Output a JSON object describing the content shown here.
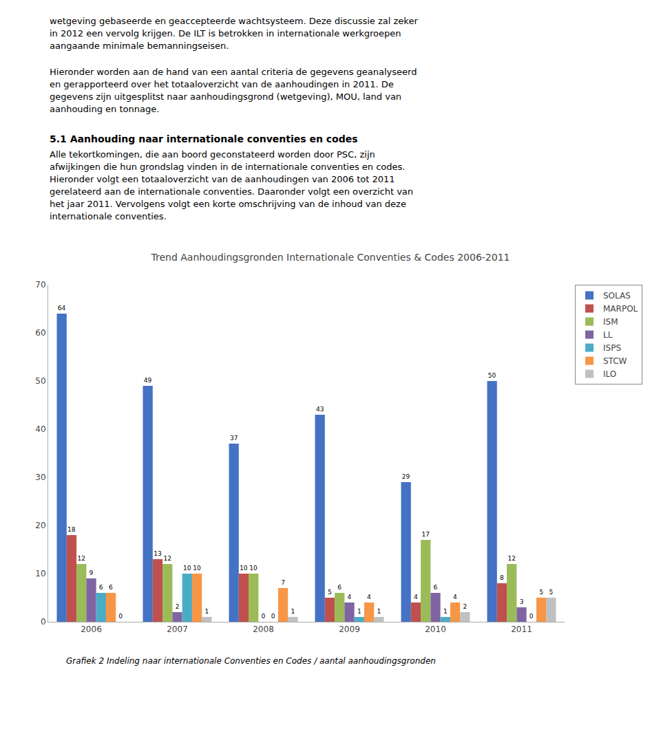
{
  "paragraphs": [
    {
      "lines": [
        "wetgeving gebaseerde en geaccepteerde wachtsysteem. Deze discussie zal zeker",
        "in 2012 een vervolg krijgen. De ILT is betrokken in internationale werkgroepen",
        "aangaande minimale bemanningseisen."
      ]
    },
    {
      "lines": [
        "Hieronder worden aan de hand van een aantal criteria de gegevens geanalyseerd",
        "en gerapporteerd over het totaaloverzicht van de aanhoudingen in 2011. De",
        "gegevens zijn uitgesplitst naar aanhoudingsgrond (wetgeving), MOU, land van",
        "aanhouding en tonnage."
      ]
    },
    {
      "heading": "5.1 Aanhouding naar internationale conventies en codes"
    },
    {
      "lines": [
        "Alle tekortkomingen, die aan boord geconstateerd worden door PSC, zijn",
        "afwijkingen die hun grondslag vinden in de internationale conventies en codes.",
        "Hieronder volgt een totaaloverzicht van de aanhoudingen van 2006 tot 2011",
        "gerelateerd aan de internationale conventies. Daaronder volgt een overzicht van",
        "het jaar 2011. Vervolgens volgt een korte omschrijving van de inhoud van deze",
        "internationale conventies."
      ]
    }
  ],
  "chart_data": {
    "type": "bar",
    "title": "Trend Aanhoudingsgronden Internationale Conventies & Codes 2006-2011",
    "caption": "Grafiek 2 Indeling naar internationale Conventies en Codes / aantal aanhoudingsgronden",
    "categories": [
      "2006",
      "2007",
      "2008",
      "2009",
      "2010",
      "2011"
    ],
    "series": [
      {
        "name": "SOLAS",
        "color": "#4472C4",
        "values": [
          64,
          49,
          37,
          43,
          29,
          50
        ]
      },
      {
        "name": "MARPOL",
        "color": "#C0504D",
        "values": [
          18,
          13,
          10,
          5,
          4,
          8
        ]
      },
      {
        "name": "ISM",
        "color": "#9BBB59",
        "values": [
          12,
          12,
          10,
          6,
          17,
          12
        ]
      },
      {
        "name": "LL",
        "color": "#8064A2",
        "values": [
          9,
          2,
          0,
          4,
          6,
          3
        ]
      },
      {
        "name": "ISPS",
        "color": "#4BACC6",
        "values": [
          6,
          10,
          0,
          1,
          1,
          0
        ]
      },
      {
        "name": "STCW",
        "color": "#F79646",
        "values": [
          6,
          10,
          7,
          4,
          4,
          5
        ]
      },
      {
        "name": "ILO",
        "color": "#C0C0C0",
        "values": [
          0,
          1,
          1,
          1,
          2,
          5
        ]
      }
    ],
    "ylim": [
      0,
      70
    ],
    "yticks": [
      0,
      10,
      20,
      30,
      40,
      50,
      60,
      70
    ],
    "grid": false,
    "legend": "right",
    "data_labels": true
  }
}
